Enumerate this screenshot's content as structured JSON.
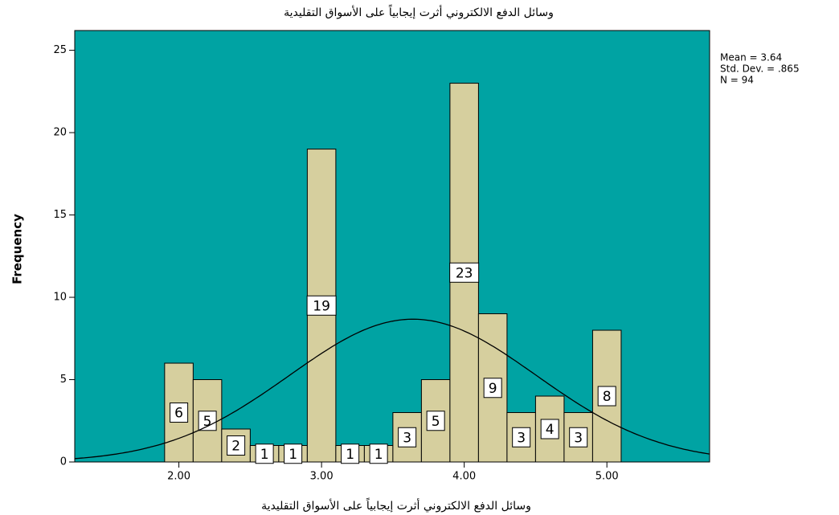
{
  "chart_data": {
    "type": "histogram",
    "title": "وسائل الدفع الالكتروني أثرت إيجابياً على الأسواق التقليدية",
    "x_label": "وسائل الدفع الالكتروني أثرت إيجابياً على الأسواق التقليدية",
    "y_label": "Frequency",
    "bins": [
      1.9,
      2.1,
      2.3,
      2.5,
      2.7,
      2.9,
      3.1,
      3.3,
      3.5,
      3.7,
      3.9,
      4.1,
      4.3,
      4.5,
      4.7,
      4.9,
      5.1
    ],
    "values": [
      6,
      5,
      2,
      1,
      1,
      19,
      1,
      1,
      3,
      5,
      23,
      9,
      3,
      4,
      3,
      8
    ],
    "color": "#d6cf9e",
    "background": "#00a3a3",
    "xlim": [
      1.27,
      5.72
    ],
    "ylim": [
      0,
      26.2
    ],
    "xticks": [
      {
        "value": 2,
        "label": "2.00"
      },
      {
        "value": 3,
        "label": "3.00"
      },
      {
        "value": 4,
        "label": "4.00"
      },
      {
        "value": 5,
        "label": "5.00"
      }
    ],
    "yticks": [
      0,
      5,
      10,
      15,
      20,
      25
    ],
    "stats": {
      "mean": {
        "value": 3.64,
        "label": "Mean = 3.64"
      },
      "sd": {
        "value": 0.865,
        "label": "Std. Dev. = .865"
      },
      "n": {
        "value": 94,
        "label": "N = 94"
      }
    }
  }
}
